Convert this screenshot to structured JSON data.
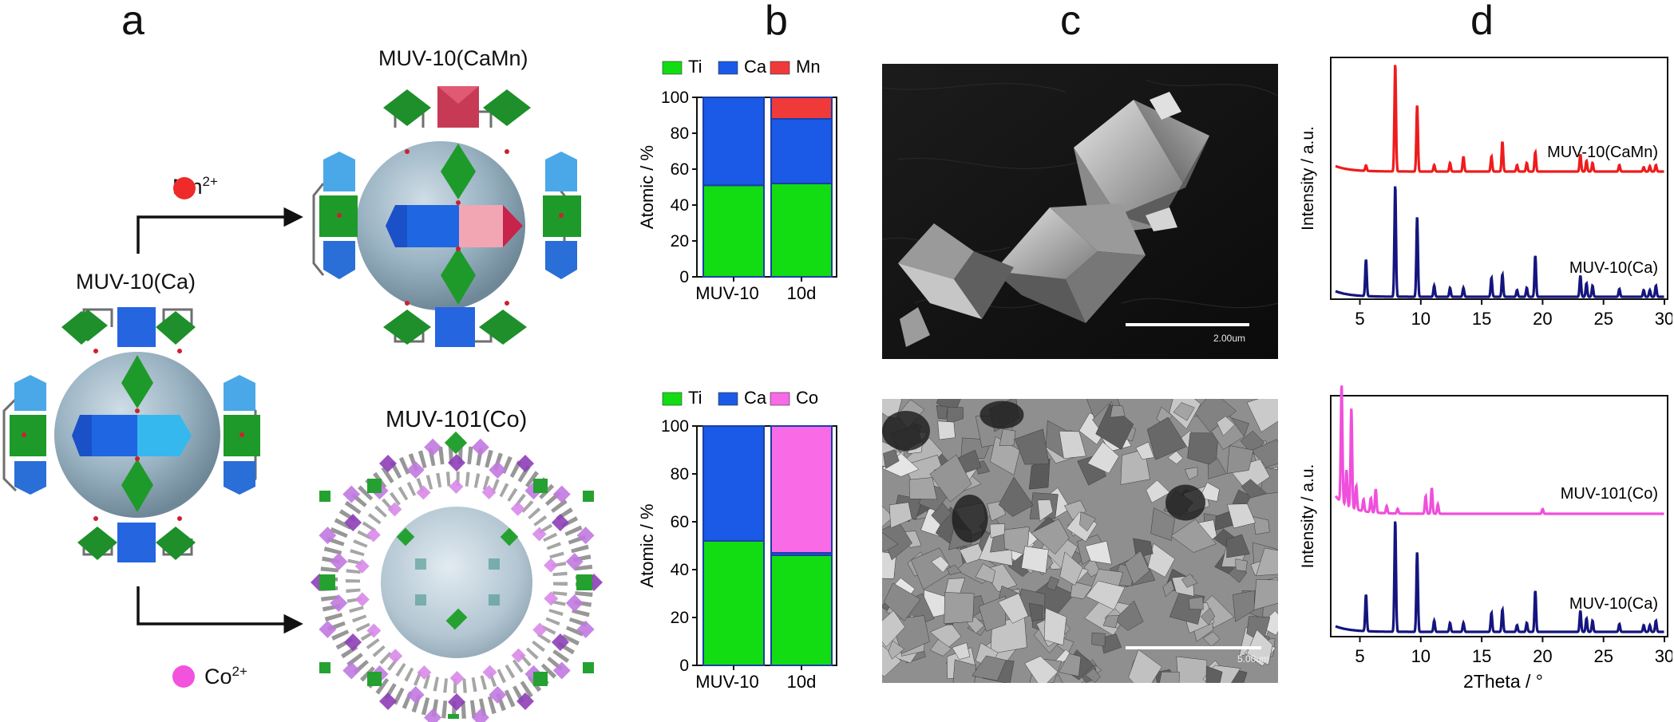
{
  "panels": {
    "a": "a",
    "b": "b",
    "c": "c",
    "d": "d"
  },
  "panel_a": {
    "top_label": "MUV-10(CaMn)",
    "left_label": "MUV-10(Ca)",
    "bottom_label": "MUV-101(Co)",
    "ion_top": "Mn",
    "ion_top_charge": "2+",
    "ion_bottom": "Co",
    "ion_bottom_charge": "2+",
    "colors": {
      "mn": "#ee2a2a",
      "co": "#f252dc",
      "sphere": "#93aebe",
      "ti_octahedra": "#1d9b2b",
      "ca_prism": "#1e5fe0"
    }
  },
  "panel_c": {
    "top_scale_label": "2.00um",
    "bottom_scale_label": "5.00um"
  },
  "chart_data": [
    {
      "type": "bar",
      "stacked": true,
      "legend": [
        "Ti",
        "Ca",
        "Mn"
      ],
      "colors": [
        "#12dd12",
        "#1a5ae6",
        "#f03a3a"
      ],
      "categories": [
        "MUV-10",
        "10d"
      ],
      "series": [
        {
          "name": "Ti",
          "values": [
            51,
            52
          ]
        },
        {
          "name": "Ca",
          "values": [
            49,
            36
          ]
        },
        {
          "name": "Mn",
          "values": [
            0,
            12
          ]
        }
      ],
      "ylabel": "Atomic / %",
      "ylim": [
        0,
        100
      ],
      "yticks": [
        "0",
        "20",
        "40",
        "60",
        "80",
        "100"
      ],
      "legend_position": "top"
    },
    {
      "type": "bar",
      "stacked": true,
      "legend": [
        "Ti",
        "Ca",
        "Co"
      ],
      "colors": [
        "#12dd12",
        "#1a5ae6",
        "#f86ae6"
      ],
      "categories": [
        "MUV-10",
        "10d"
      ],
      "series": [
        {
          "name": "Ti",
          "values": [
            52,
            46
          ]
        },
        {
          "name": "Ca",
          "values": [
            48,
            1
          ]
        },
        {
          "name": "Co",
          "values": [
            0,
            53
          ]
        }
      ],
      "ylabel": "Atomic / %",
      "ylim": [
        0,
        100
      ],
      "yticks": [
        "0",
        "20",
        "40",
        "60",
        "80",
        "100"
      ],
      "legend_position": "top"
    },
    {
      "type": "line",
      "xlabel": "2Theta / °",
      "ylabel": "Intensity / a.u.",
      "xlim": [
        3,
        30
      ],
      "xticks": [
        "5",
        "10",
        "15",
        "20",
        "25",
        "30"
      ],
      "series": [
        {
          "name": "MUV-10(CaMn)",
          "color": "#ee1c1c",
          "peaks": [
            [
              5.5,
              0.05
            ],
            [
              7.9,
              1.0
            ],
            [
              9.7,
              0.62
            ],
            [
              11.1,
              0.06
            ],
            [
              12.4,
              0.08
            ],
            [
              13.5,
              0.14
            ],
            [
              15.8,
              0.14
            ],
            [
              16.7,
              0.28
            ],
            [
              17.9,
              0.06
            ],
            [
              18.7,
              0.08
            ],
            [
              19.4,
              0.18
            ],
            [
              23.1,
              0.16
            ],
            [
              23.6,
              0.1
            ],
            [
              24.1,
              0.08
            ],
            [
              26.3,
              0.06
            ],
            [
              28.3,
              0.04
            ],
            [
              28.8,
              0.05
            ],
            [
              29.3,
              0.06
            ]
          ]
        },
        {
          "name": "MUV-10(Ca)",
          "color": "#15157e",
          "peaks": [
            [
              5.5,
              0.33
            ],
            [
              7.9,
              1.0
            ],
            [
              9.7,
              0.72
            ],
            [
              11.1,
              0.1
            ],
            [
              12.4,
              0.08
            ],
            [
              13.5,
              0.08
            ],
            [
              15.8,
              0.17
            ],
            [
              16.7,
              0.2
            ],
            [
              17.9,
              0.06
            ],
            [
              18.7,
              0.08
            ],
            [
              19.4,
              0.37
            ],
            [
              23.1,
              0.19
            ],
            [
              23.6,
              0.12
            ],
            [
              24.1,
              0.1
            ],
            [
              26.3,
              0.07
            ],
            [
              28.3,
              0.06
            ],
            [
              28.8,
              0.06
            ],
            [
              29.3,
              0.1
            ]
          ]
        }
      ]
    },
    {
      "type": "line",
      "xlabel": "2Theta / °",
      "ylabel": "Intensity / a.u.",
      "xlim": [
        3,
        30
      ],
      "xticks": [
        "5",
        "10",
        "15",
        "20",
        "25",
        "30"
      ],
      "series": [
        {
          "name": "MUV-101(Co)",
          "color": "#f04fdc",
          "peaks": [
            [
              3.5,
              1.0
            ],
            [
              3.9,
              0.3
            ],
            [
              4.3,
              0.85
            ],
            [
              4.7,
              0.2
            ],
            [
              5.3,
              0.1
            ],
            [
              5.9,
              0.12
            ],
            [
              6.3,
              0.2
            ],
            [
              7.2,
              0.06
            ],
            [
              8.1,
              0.04
            ],
            [
              10.4,
              0.15
            ],
            [
              10.9,
              0.22
            ],
            [
              11.4,
              0.08
            ],
            [
              20.0,
              0.04
            ]
          ]
        },
        {
          "name": "MUV-10(Ca)",
          "color": "#15157e",
          "peaks": [
            [
              5.5,
              0.33
            ],
            [
              7.9,
              1.0
            ],
            [
              9.7,
              0.72
            ],
            [
              11.1,
              0.1
            ],
            [
              12.4,
              0.08
            ],
            [
              13.5,
              0.08
            ],
            [
              15.8,
              0.17
            ],
            [
              16.7,
              0.2
            ],
            [
              17.9,
              0.06
            ],
            [
              18.7,
              0.08
            ],
            [
              19.4,
              0.37
            ],
            [
              23.1,
              0.19
            ],
            [
              23.6,
              0.12
            ],
            [
              24.1,
              0.1
            ],
            [
              26.3,
              0.07
            ],
            [
              28.3,
              0.06
            ],
            [
              28.8,
              0.06
            ],
            [
              29.3,
              0.1
            ]
          ]
        }
      ]
    }
  ]
}
